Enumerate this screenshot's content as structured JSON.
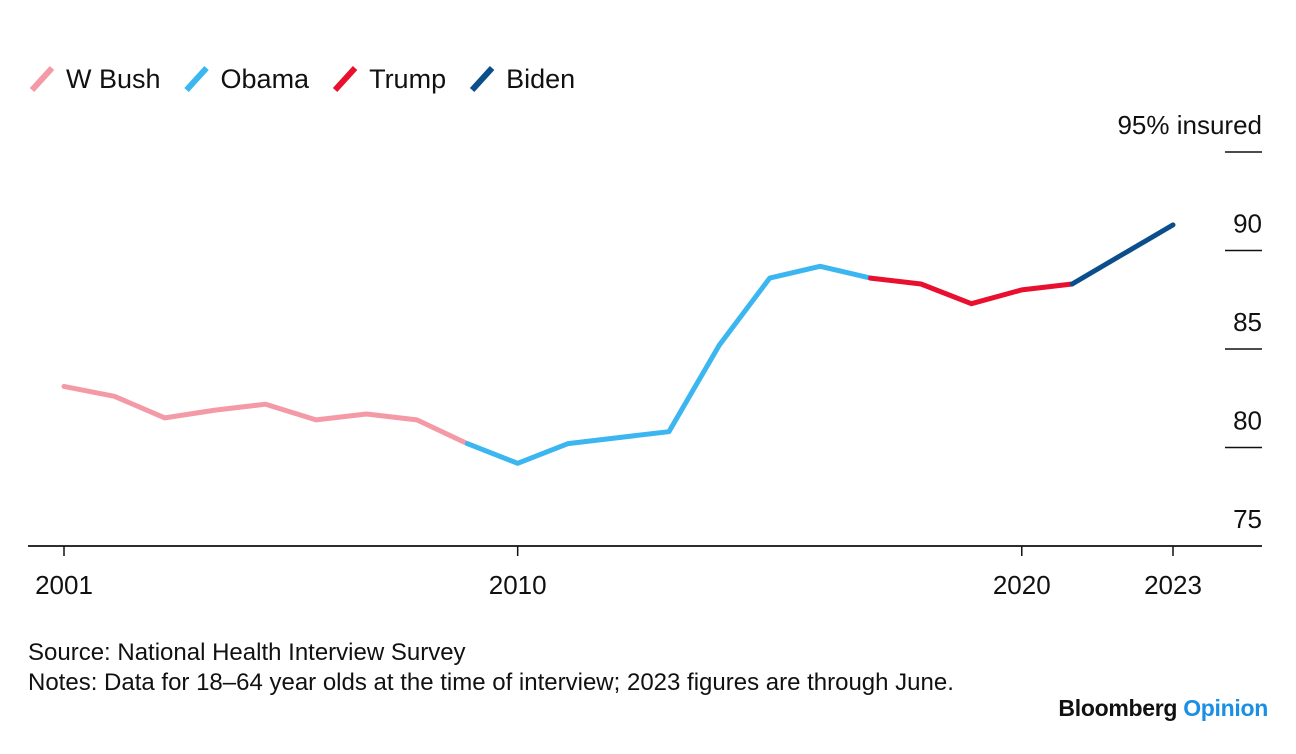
{
  "chart_data": {
    "type": "line",
    "title": "",
    "xlabel": "",
    "ylabel": "",
    "y_unit_label": "95% insured",
    "xlim": [
      2001,
      2023
    ],
    "ylim": [
      75,
      95
    ],
    "x_ticks": [
      "2001",
      "2010",
      "2020",
      "2023"
    ],
    "y_ticks": [
      {
        "value": 95,
        "label": "95% insured"
      },
      {
        "value": 90,
        "label": "90"
      },
      {
        "value": 85,
        "label": "85"
      },
      {
        "value": 80,
        "label": "80"
      },
      {
        "value": 75,
        "label": "75"
      }
    ],
    "legend_position": "top-left",
    "grid": false,
    "series": [
      {
        "name": "W Bush",
        "color": "#f49aa7",
        "x": [
          2001,
          2002,
          2003,
          2004,
          2005,
          2006,
          2007,
          2008,
          2009
        ],
        "y": [
          83.1,
          82.6,
          81.5,
          81.9,
          82.2,
          81.4,
          81.7,
          81.4,
          80.2
        ]
      },
      {
        "name": "Obama",
        "color": "#3bb6f0",
        "x": [
          2009,
          2010,
          2011,
          2012,
          2013,
          2014,
          2015,
          2016,
          2017
        ],
        "y": [
          80.2,
          79.2,
          80.2,
          80.5,
          80.8,
          85.2,
          88.6,
          89.2,
          88.6
        ]
      },
      {
        "name": "Trump",
        "color": "#e8102e",
        "x": [
          2017,
          2018,
          2019,
          2020,
          2021
        ],
        "y": [
          88.6,
          88.3,
          87.3,
          88.0,
          88.3
        ]
      },
      {
        "name": "Biden",
        "color": "#0b4e8c",
        "x": [
          2021,
          2022,
          2023
        ],
        "y": [
          88.3,
          89.8,
          91.3
        ]
      }
    ]
  },
  "footer": {
    "source": "Source: National Health Interview Survey",
    "notes": "Notes: Data for 18–64 year olds at the time of interview; 2023 figures are through June."
  },
  "brand": {
    "part1": "Bloomberg",
    "part2": "Opinion"
  }
}
